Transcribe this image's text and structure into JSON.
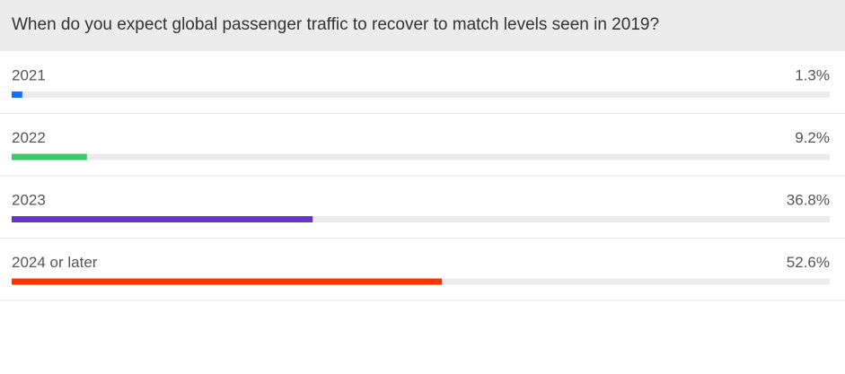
{
  "chart_data": {
    "type": "bar",
    "orientation": "horizontal",
    "title": "When do you expect global passenger traffic to recover to match levels seen in 2019?",
    "categories": [
      "2021",
      "2022",
      "2023",
      "2024 or later"
    ],
    "values": [
      1.3,
      9.2,
      36.8,
      52.6
    ],
    "value_labels": [
      "1.3%",
      "9.2%",
      "36.8%",
      "52.6%"
    ],
    "colors": [
      "#1a6ef5",
      "#3cc86a",
      "#6633cc",
      "#ff3300"
    ],
    "xlim": [
      0,
      100
    ]
  }
}
